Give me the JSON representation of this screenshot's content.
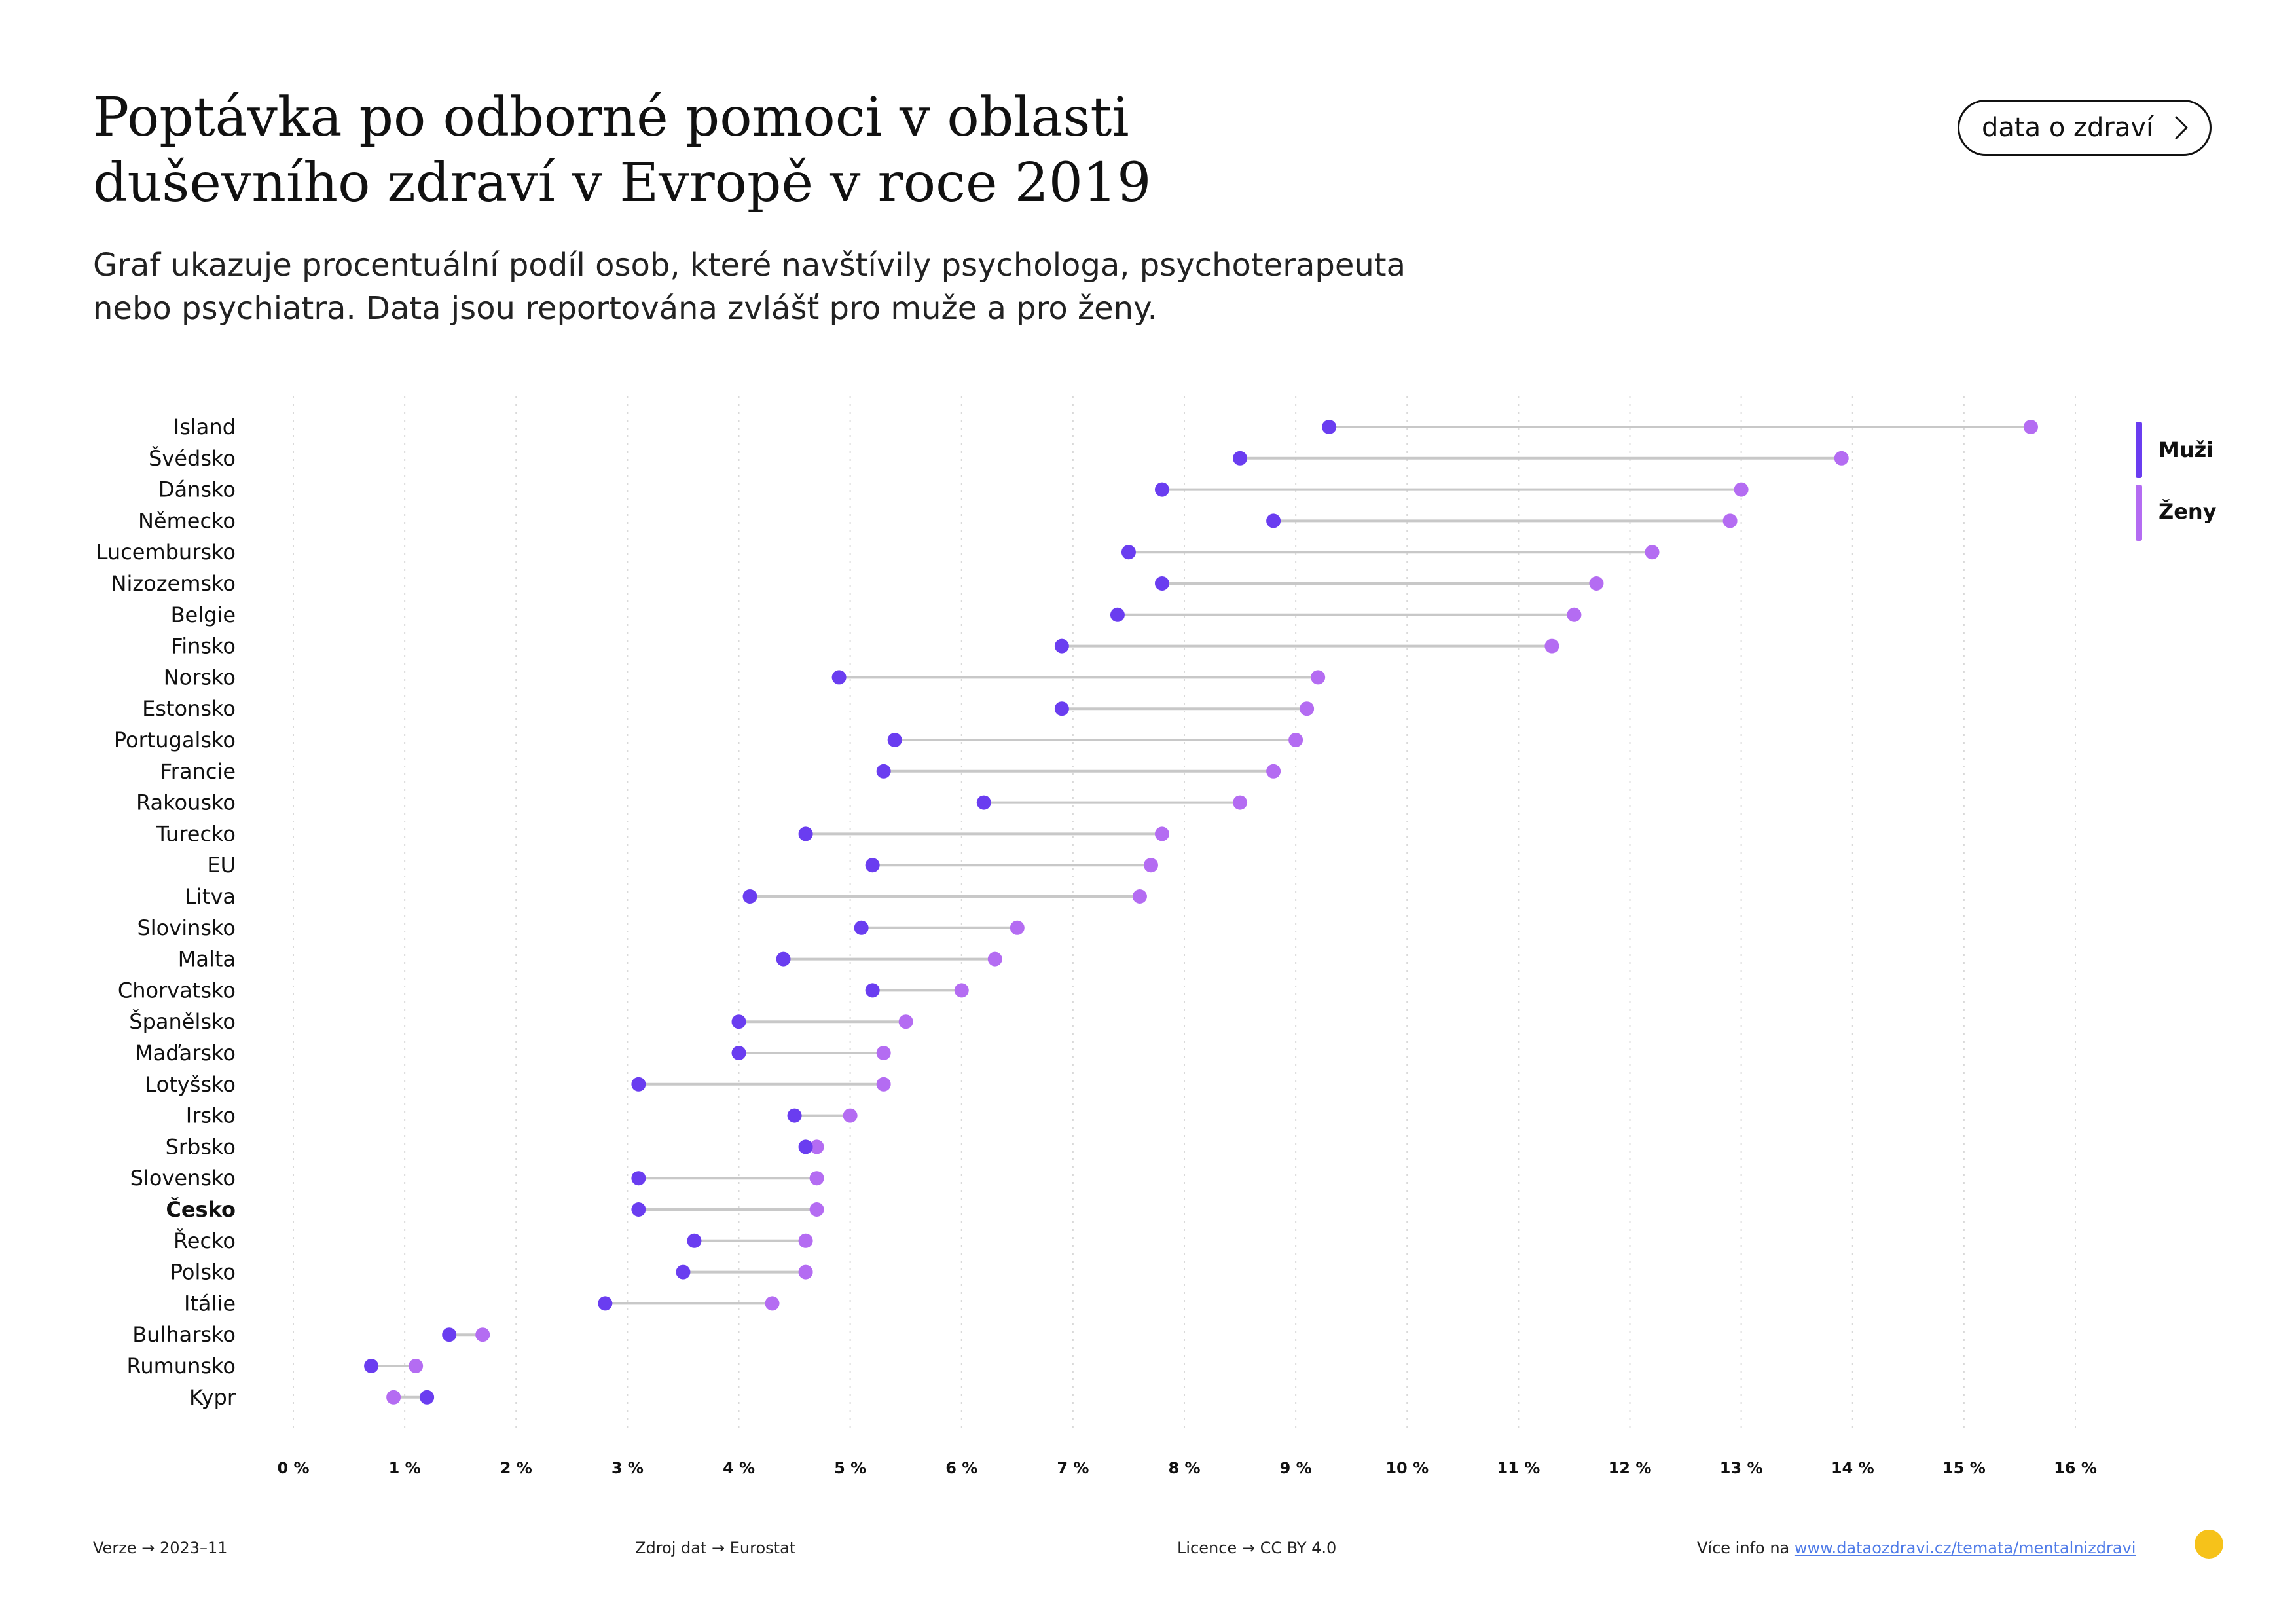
{
  "header": {
    "title_line1": "Poptávka po odborné pomoci v oblasti",
    "title_line2": "duševního zdraví v Evropě v roce 2019",
    "subtitle_line1": "Graf ukazuje procentuální podíl osob, které navštívily psychologa, psychoterapeuta",
    "subtitle_line2": "nebo psychiatra. Data jsou reportována zvlášť pro muže a pro ženy.",
    "button_label": "data o zdraví",
    "button_icon": "chevron-right-icon"
  },
  "colors": {
    "men": "#6a3df0",
    "women": "#b46cf2",
    "connector": "#c8c8c8",
    "grid": "#d9d9d9",
    "link": "#4f7be8",
    "logo": "#f6c21a"
  },
  "legend": {
    "men_label": "Muži",
    "women_label": "Ženy"
  },
  "chart_data": {
    "type": "dumbbell",
    "title": "Poptávka po odborné pomoci v oblasti duševního zdraví v Evropě v roce 2019",
    "xlim": [
      0,
      16
    ],
    "x_ticks": [
      "0 %",
      "1 %",
      "2 %",
      "3 %",
      "4 %",
      "5 %",
      "6 %",
      "7 %",
      "8 %",
      "9 %",
      "10 %",
      "11 %",
      "12 %",
      "13 %",
      "14 %",
      "15 %",
      "16 %"
    ],
    "highlight": "Česko",
    "grid": "vertical dotted",
    "legend_position": "top-right",
    "categories": [
      "Island",
      "Švédsko",
      "Dánsko",
      "Německo",
      "Lucembursko",
      "Nizozemsko",
      "Belgie",
      "Finsko",
      "Norsko",
      "Estonsko",
      "Portugalsko",
      "Francie",
      "Rakousko",
      "Turecko",
      "EU",
      "Litva",
      "Slovinsko",
      "Malta",
      "Chorvatsko",
      "Španělsko",
      "Maďarsko",
      "Lotyšsko",
      "Irsko",
      "Srbsko",
      "Slovensko",
      "Česko",
      "Řecko",
      "Polsko",
      "Itálie",
      "Bulharsko",
      "Rumunsko",
      "Kypr"
    ],
    "series": [
      {
        "name": "Muži",
        "values": [
          9.3,
          8.5,
          7.8,
          8.8,
          7.5,
          7.8,
          7.4,
          6.9,
          4.9,
          6.9,
          5.4,
          5.3,
          6.2,
          4.6,
          5.2,
          4.1,
          5.1,
          4.4,
          5.2,
          4.0,
          4.0,
          3.1,
          4.5,
          4.6,
          3.1,
          3.1,
          3.6,
          3.5,
          2.8,
          1.4,
          0.7,
          1.2
        ]
      },
      {
        "name": "Ženy",
        "values": [
          15.6,
          13.9,
          13.0,
          12.9,
          12.2,
          11.7,
          11.5,
          11.3,
          9.2,
          9.1,
          9.0,
          8.8,
          8.5,
          7.8,
          7.7,
          7.6,
          6.5,
          6.3,
          6.0,
          5.5,
          5.3,
          5.3,
          5.0,
          4.7,
          4.7,
          4.7,
          4.6,
          4.6,
          4.3,
          1.7,
          1.1,
          0.9
        ]
      }
    ]
  },
  "footer": {
    "version_label": "Verze",
    "version_value": "2023–11",
    "source_label": "Zdroj dat",
    "source_value": "Eurostat",
    "license_label": "Licence",
    "license_value": "CC BY 4.0",
    "more_info_label": "Více info na",
    "more_info_link": "www.dataozdravi.cz/temata/mentalnizdravi",
    "arrow": "→"
  }
}
